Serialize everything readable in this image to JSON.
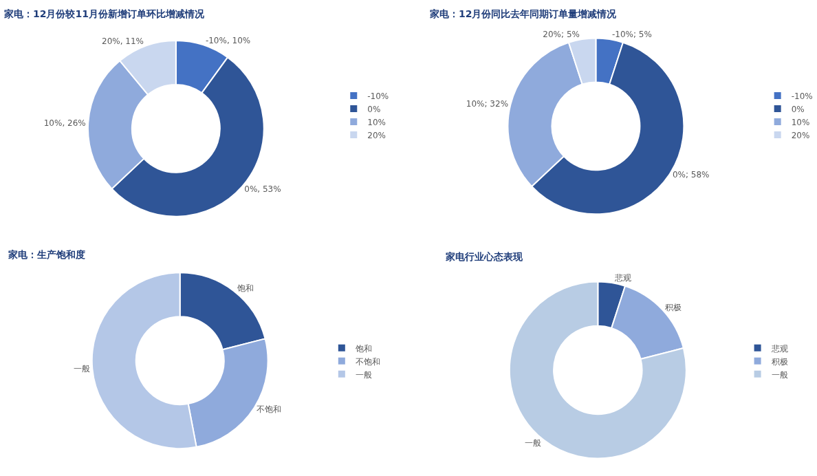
{
  "chart_data": [
    {
      "type": "donut",
      "title": "家电：12月份较11月份新增订单环比增减情况",
      "categories": [
        "-10%",
        "0%",
        "10%",
        "20%"
      ],
      "values": [
        10,
        53,
        26,
        11
      ],
      "colors": [
        "#4472c4",
        "#2f5597",
        "#8faadc",
        "#c9d7ef"
      ],
      "value_labels": [
        "-10%, 10%",
        "0%, 53%",
        "10%, 26%",
        "20%, 11%"
      ],
      "legend": "right"
    },
    {
      "type": "donut",
      "title": "家电：12月份同比去年同期订单量增减情况",
      "categories": [
        "-10%",
        "0%",
        "10%",
        "20%"
      ],
      "values": [
        5,
        58,
        32,
        5
      ],
      "colors": [
        "#4472c4",
        "#2f5597",
        "#8faadc",
        "#c9d7ef"
      ],
      "value_labels": [
        "-10%; 5%",
        "0%; 58%",
        "10%; 32%",
        "20%; 5%"
      ],
      "legend": "right"
    },
    {
      "type": "donut",
      "title": "家电：生产饱和度",
      "categories": [
        "饱和",
        "不饱和",
        "一般"
      ],
      "values": [
        21,
        26,
        53
      ],
      "colors": [
        "#2f5597",
        "#8faadc",
        "#b4c7e7"
      ],
      "value_labels": [
        "饱和",
        "不饱和",
        "一般"
      ],
      "legend": "right"
    },
    {
      "type": "donut",
      "title": "家电行业心态表现",
      "categories": [
        "悲观",
        "积极",
        "一般"
      ],
      "values": [
        5,
        16,
        79
      ],
      "colors": [
        "#2f5597",
        "#8faadc",
        "#b8cce4"
      ],
      "value_labels": [
        "悲观",
        "积极",
        "一般"
      ],
      "legend": "right"
    }
  ]
}
